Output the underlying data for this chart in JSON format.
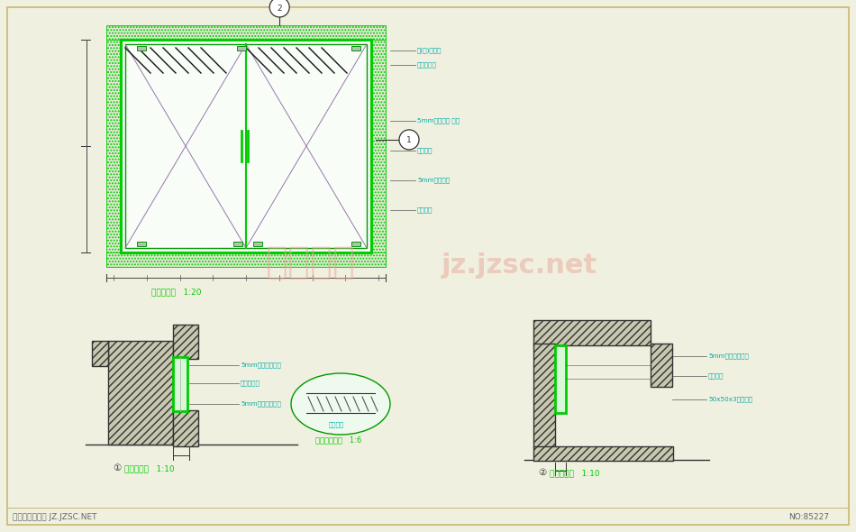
{
  "bg_color": "#f0f0e0",
  "border_color": "#c8b870",
  "gc": "#00cc00",
  "gc2": "#009900",
  "dc": "#00aaaa",
  "watermark1": "典尚素材",
  "watermark2": "jz.jzsc.net",
  "footer_left": "典尚建筑素材网 JZ.JZSC.NET",
  "footer_right": "NO:85227",
  "label1": "门洞立面图   1:20",
  "label2": "门洞大样图   1:10",
  "label3": "门洞大样图   1:10",
  "label4": "门槛垫块详图   1:6",
  "ann_right": [
    "石(竹)饰面板",
    "不锈钢边框",
    "5mm钢化玻璃 单片",
    "玻璃门铰",
    "5mm钢化玻璃",
    "玻璃门框"
  ],
  "ann_left_detail": [
    "5mm钢化玻璃单片",
    "铝合金边框",
    "5mm钢化玻璃单片"
  ],
  "ann_right_detail": [
    "5mm钢化玻璃单片",
    "铝合金槽",
    "50x50x3角钢固定"
  ]
}
